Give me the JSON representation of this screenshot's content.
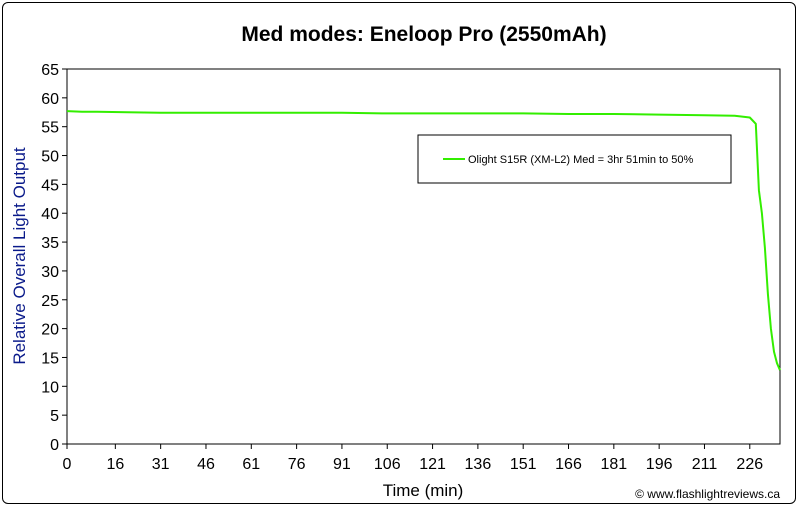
{
  "chart_data": {
    "type": "line",
    "title": "Med modes: Eneloop Pro (2550mAh)",
    "xlabel": "Time (min)",
    "ylabel": "Relative Overall Light Output",
    "xlim": [
      0,
      236
    ],
    "ylim": [
      0,
      65
    ],
    "xticks": [
      0,
      16,
      31,
      46,
      61,
      76,
      91,
      106,
      121,
      136,
      151,
      166,
      181,
      196,
      211,
      226
    ],
    "yticks": [
      0,
      5,
      10,
      15,
      20,
      25,
      30,
      35,
      40,
      45,
      50,
      55,
      60,
      65
    ],
    "grid": false,
    "legend": "top-right",
    "series": [
      {
        "name": "Olight S15R (XM-L2) Med = 3hr 51min to 50%",
        "color": "#33ee00",
        "x": [
          0,
          5,
          10,
          20,
          31,
          46,
          61,
          76,
          91,
          106,
          121,
          136,
          151,
          166,
          181,
          196,
          211,
          221,
          226,
          228,
          229,
          230,
          231,
          232,
          233,
          234,
          235,
          236
        ],
        "y": [
          57.7,
          57.6,
          57.6,
          57.5,
          57.4,
          57.4,
          57.4,
          57.4,
          57.4,
          57.3,
          57.3,
          57.3,
          57.3,
          57.2,
          57.2,
          57.1,
          57.0,
          56.9,
          56.6,
          55.5,
          44.0,
          40.0,
          34.0,
          26.0,
          20.0,
          16.0,
          14.0,
          12.8
        ]
      }
    ]
  },
  "credit": "© www.flashlightreviews.ca"
}
